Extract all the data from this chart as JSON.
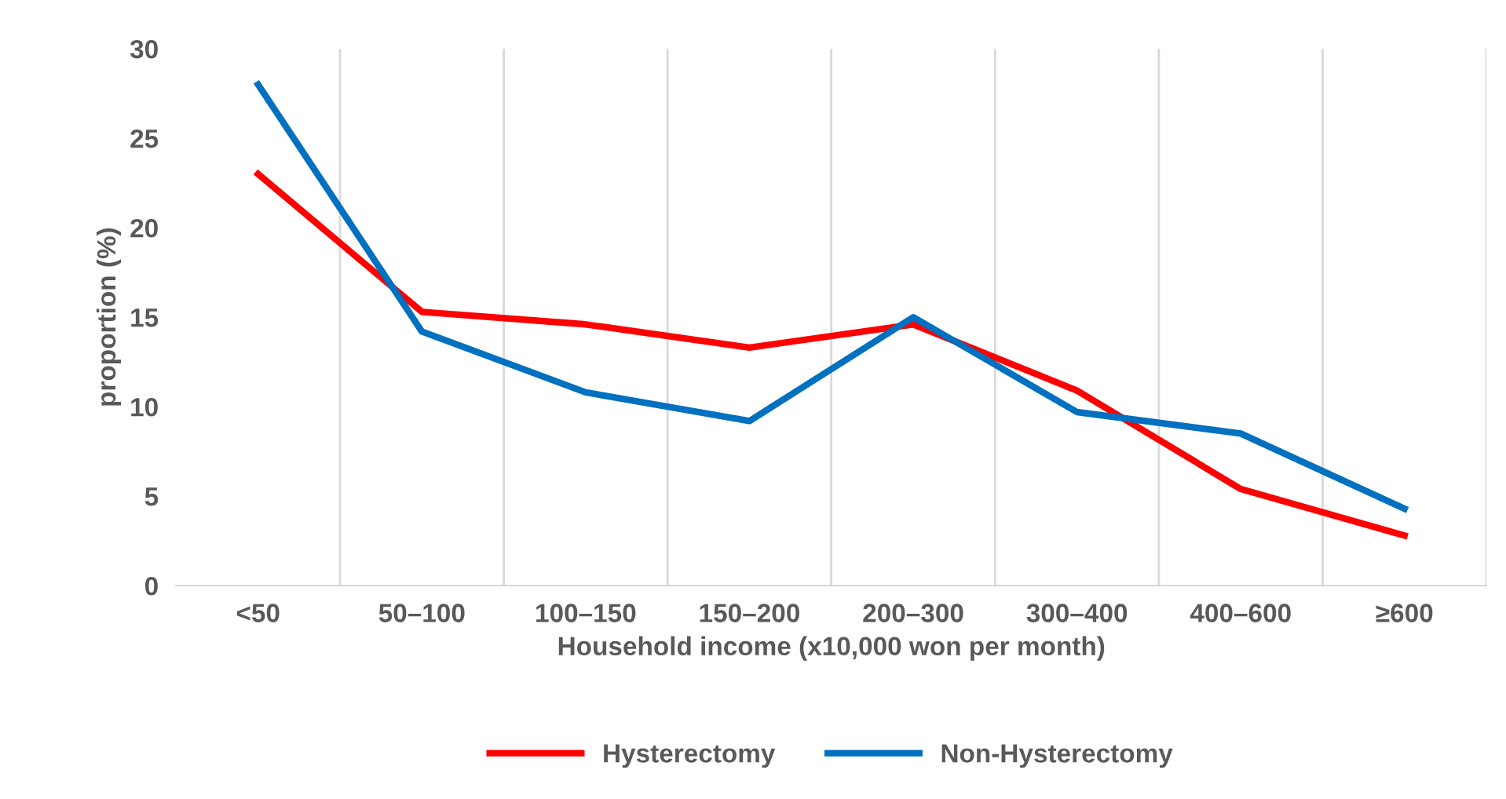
{
  "chart_data": {
    "type": "line",
    "xlabel": "Household income (x10,000 won per month)",
    "ylabel": "proportion (%)",
    "categories": [
      "<50",
      "50–100",
      "100–150",
      "150–200",
      "200–300",
      "300–400",
      "400–600",
      "≥600"
    ],
    "series": [
      {
        "name": "Hysterectomy",
        "color": "#ff0000",
        "values": [
          23.0,
          15.3,
          14.6,
          13.3,
          14.6,
          10.9,
          5.4,
          2.8
        ]
      },
      {
        "name": "Non-Hysterectomy",
        "color": "#0070c0",
        "values": [
          28.0,
          14.2,
          10.8,
          9.2,
          15.0,
          9.7,
          8.5,
          4.3
        ]
      }
    ],
    "ylim": [
      0,
      30
    ],
    "yticks": [
      0,
      5,
      10,
      15,
      20,
      25,
      30
    ],
    "grid": "x",
    "legend": "bottom",
    "marker": "none",
    "line_style": "solid"
  }
}
